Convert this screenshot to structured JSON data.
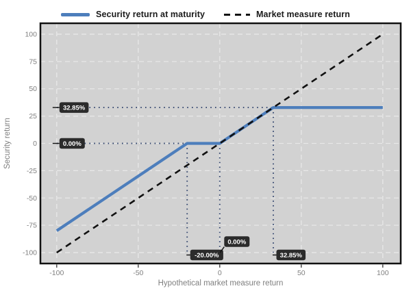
{
  "legend": {
    "items": [
      {
        "label": "Security return at maturity",
        "color": "#4d7ebc",
        "style": "solid"
      },
      {
        "label": "Market measure return",
        "color": "#111111",
        "style": "dashed"
      }
    ]
  },
  "chart_data": {
    "type": "line",
    "title": "",
    "xlabel": "Hypothetical market measure return",
    "ylabel": "Security return",
    "xlim": [
      -110,
      111
    ],
    "ylim": [
      -110,
      110
    ],
    "x_ticks": [
      -100,
      -50,
      0,
      50,
      100
    ],
    "y_ticks": [
      -100,
      -75,
      -50,
      -25,
      0,
      25,
      50,
      75,
      100
    ],
    "grid": {
      "show": true,
      "style": "dashed",
      "color": "#e8e8e8"
    },
    "legend_position": "top-center",
    "series": [
      {
        "name": "Security return at maturity",
        "style": "solid",
        "color": "#4d7ebc",
        "width": 4.2,
        "points": [
          [
            -100,
            -80
          ],
          [
            -20,
            0
          ],
          [
            0,
            0
          ],
          [
            32.85,
            32.85
          ],
          [
            100,
            32.85
          ]
        ]
      },
      {
        "name": "Market measure return",
        "style": "dashed",
        "color": "#111111",
        "width": 2.6,
        "points": [
          [
            -100,
            -100
          ],
          [
            100,
            100
          ]
        ]
      }
    ],
    "key_points": [
      {
        "x": -20,
        "y": 0,
        "x_badge": "-20.00%",
        "raised": false,
        "h_dropline": true,
        "v_dropline": true
      },
      {
        "x": 0,
        "y": 0,
        "x_badge": "0.00%",
        "raised": true,
        "h_dropline": false,
        "v_dropline": true
      },
      {
        "x": 32.85,
        "y": 32.85,
        "x_badge": "32.85%",
        "raised": false,
        "h_dropline": true,
        "v_dropline": true
      }
    ],
    "y_badges": [
      {
        "value": 32.85,
        "label": "32.85%"
      },
      {
        "value": 0,
        "label": "0.00%"
      }
    ],
    "colors": {
      "plot_bg": "#d2d2d2",
      "border": "#111111",
      "dropline": "#32456e",
      "badge_bg": "#2b2b2b",
      "badge_text": "#ffffff",
      "tick_label": "#7f7f7f",
      "axis_title": "#7f7f7f",
      "tick_mark": "#333333"
    }
  }
}
